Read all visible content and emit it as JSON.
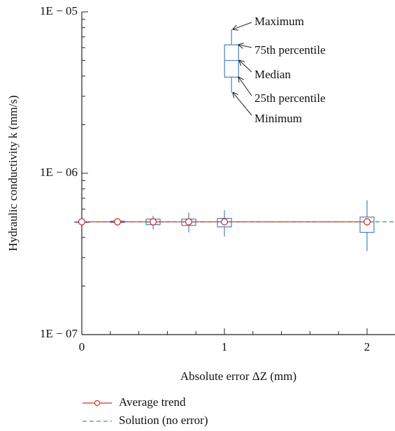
{
  "chart_data": {
    "type": "box",
    "x_label": "Absolute error ΔZ (mm)",
    "y_label": "Hydraulic conductivity k (mm/s)",
    "xlim": [
      0,
      2.2
    ],
    "xticks": [
      0,
      1,
      2
    ],
    "xminorticks": [
      0.2,
      0.4,
      0.6,
      0.8,
      1.2,
      1.4,
      1.6,
      1.8,
      2.2
    ],
    "ylim": [
      1e-07,
      1e-05
    ],
    "log_y": true,
    "yticks": [
      {
        "value": 1e-07,
        "label": "1E − 07"
      },
      {
        "value": 1e-06,
        "label": "1E − 06"
      },
      {
        "value": 1e-05,
        "label": "1E − 05"
      }
    ],
    "yminorticks": [
      2e-07,
      3e-07,
      4e-07,
      5e-07,
      6e-07,
      7e-07,
      8e-07,
      9e-07,
      2e-06,
      3e-06,
      4e-06,
      5e-06,
      6e-06,
      7e-06,
      8e-06,
      9e-06
    ],
    "box_color": "#4a7fc1",
    "boxes": {
      "x": [
        0,
        0.25,
        0.5,
        0.75,
        1,
        2
      ],
      "min": [
        5e-07,
        4.9e-07,
        4.5e-07,
        4.3e-07,
        4.05e-07,
        3.3e-07
      ],
      "q1": [
        5e-07,
        4.95e-07,
        4.8e-07,
        4.75e-07,
        4.65e-07,
        4.3e-07
      ],
      "median": [
        5e-07,
        5e-07,
        5e-07,
        5e-07,
        5e-07,
        5e-07
      ],
      "q3": [
        5e-07,
        5.05e-07,
        5.2e-07,
        5.2e-07,
        5.25e-07,
        5.35e-07
      ],
      "max": [
        5e-07,
        5.1e-07,
        5.45e-07,
        5.7e-07,
        5.9e-07,
        6.8e-07
      ]
    },
    "example_box": {
      "x": 1.05,
      "min": 3.16e-06,
      "q1": 3.94e-06,
      "median": 5e-06,
      "q3": 6.25e-06,
      "max": 7.8e-06,
      "labels": {
        "max": "Maximum",
        "q3": "75th percentile",
        "median": "Median",
        "q1": "25th percentile",
        "min": "Minimum"
      }
    },
    "series": [
      {
        "name": "Average trend",
        "color": "#d9312b",
        "x": [
          0,
          0.25,
          0.5,
          0.75,
          1,
          2
        ],
        "values": [
          5e-07,
          5e-07,
          5e-07,
          5e-07,
          5e-07,
          5e-07
        ]
      }
    ],
    "reference": {
      "name": "Solution (no error)",
      "color": "#3aaa5c",
      "value": 5e-07
    }
  }
}
